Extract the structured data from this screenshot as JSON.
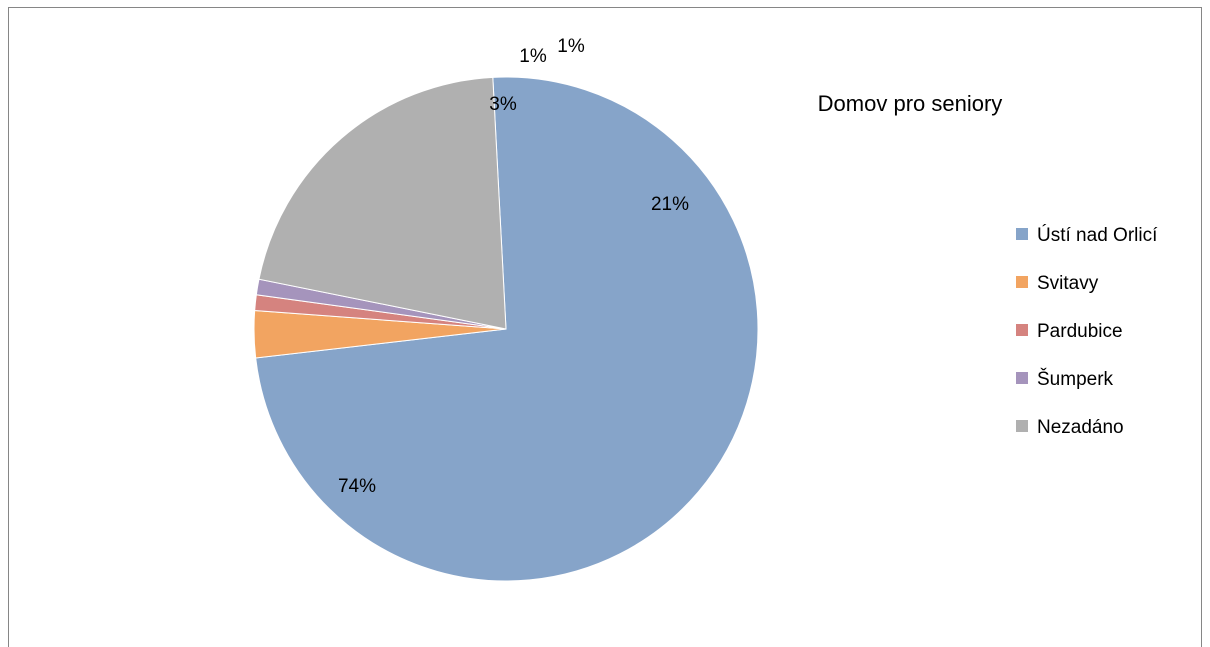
{
  "chart_data": {
    "type": "pie",
    "title": "Domov pro seniory",
    "categories": [
      "Ústí nad Orlicí",
      "Svitavy",
      "Pardubice",
      "Šumperk",
      "Nezadáno"
    ],
    "values": [
      74,
      3,
      1,
      1,
      21
    ],
    "data_labels": [
      "74%",
      "3%",
      "1%",
      "1%",
      "21%"
    ],
    "colors": [
      "#86A4C9",
      "#F2A461",
      "#D5837F",
      "#A594BC",
      "#B0B0B0"
    ],
    "legend_position": "right",
    "start_angle_deg": -93
  }
}
